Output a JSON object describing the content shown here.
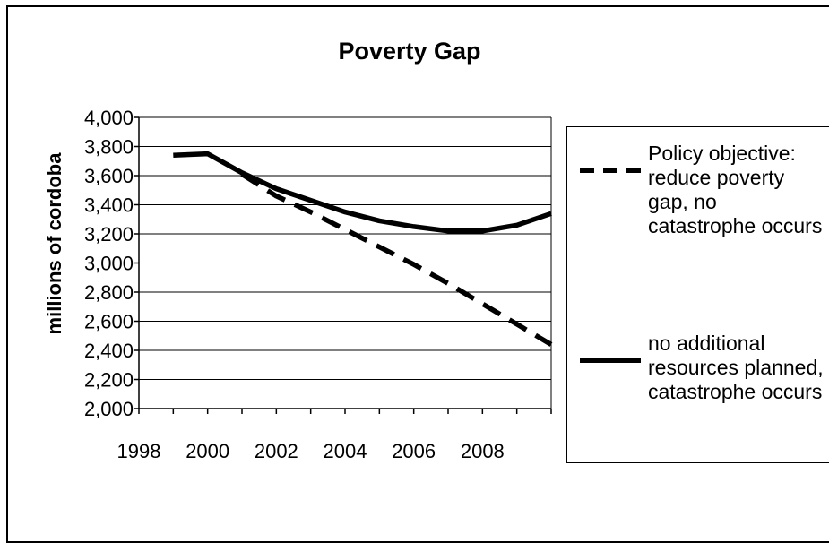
{
  "chart_data": {
    "type": "line",
    "title": "Poverty Gap",
    "xlabel": "",
    "ylabel": "millions of cordoba",
    "xlim": [
      1998,
      2010
    ],
    "ylim": [
      2000,
      4000
    ],
    "x_ticks": [
      "1998",
      "2000",
      "2002",
      "2004",
      "2006",
      "2008"
    ],
    "y_ticks": [
      "4,000",
      "3,800",
      "3,600",
      "3,400",
      "3,200",
      "3,000",
      "2,800",
      "2,600",
      "2,400",
      "2,200",
      "2,000"
    ],
    "grid": true,
    "legend_position": "right",
    "series": [
      {
        "name": "Policy objective: reduce poverty gap, no catastrophe occurs",
        "style": "dashed",
        "color": "#000000",
        "x": [
          2001,
          2002,
          2003,
          2004,
          2005,
          2006,
          2007,
          2008,
          2009,
          2010
        ],
        "y": [
          3610,
          3460,
          3350,
          3230,
          3110,
          2990,
          2860,
          2720,
          2580,
          2440
        ]
      },
      {
        "name": "no additional resources planned, catastrophe occurs",
        "style": "solid",
        "color": "#000000",
        "x": [
          1999,
          2000,
          2001,
          2002,
          2003,
          2004,
          2005,
          2006,
          2007,
          2008,
          2009,
          2010
        ],
        "y": [
          3740,
          3750,
          3620,
          3510,
          3430,
          3350,
          3290,
          3250,
          3220,
          3220,
          3260,
          3340
        ]
      }
    ]
  }
}
